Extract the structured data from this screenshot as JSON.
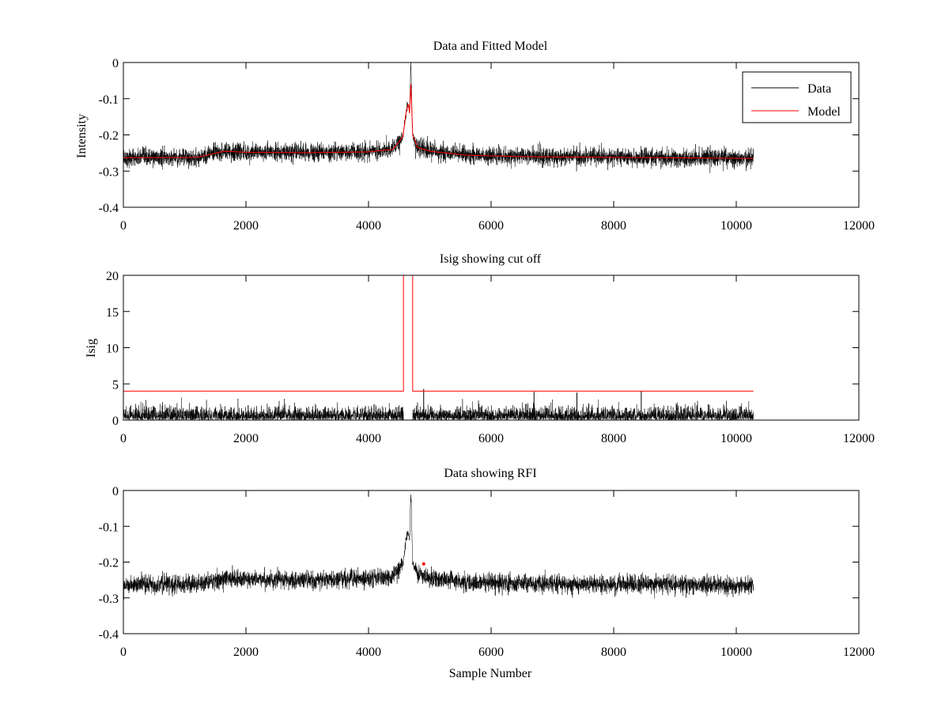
{
  "figure": {
    "xlabel": "Sample Number"
  },
  "colors": {
    "data": "#000000",
    "model": "#ff0000",
    "background": "#ffffff"
  },
  "chart_data": [
    {
      "type": "line",
      "title": "Data and Fitted Model",
      "xlabel": "",
      "ylabel": "Intensity",
      "xlim": [
        0,
        12000
      ],
      "ylim": [
        -0.4,
        0
      ],
      "xticks": [
        0,
        2000,
        4000,
        6000,
        8000,
        10000,
        12000
      ],
      "yticks": [
        -0.4,
        -0.3,
        -0.2,
        -0.1,
        0
      ],
      "ytick_labels": [
        "-0.4",
        "-0.3",
        "-0.2",
        "-0.1",
        "0"
      ],
      "legend": {
        "position": "top-right",
        "entries": [
          "Data",
          "Model"
        ]
      },
      "series": [
        {
          "name": "Data",
          "color": "#000000",
          "kind": "noisy",
          "x_range": [
            0,
            10280
          ],
          "noise": 0.012,
          "baseline_points": [
            [
              0,
              -0.263
            ],
            [
              1200,
              -0.262
            ],
            [
              1650,
              -0.245
            ],
            [
              2000,
              -0.248
            ],
            [
              3000,
              -0.249
            ],
            [
              4000,
              -0.247
            ],
            [
              4400,
              -0.24
            ],
            [
              4560,
              -0.205
            ],
            [
              4620,
              -0.13
            ],
            [
              4650,
              -0.115
            ],
            [
              4670,
              -0.14
            ],
            [
              4690,
              -0.002
            ],
            [
              4700,
              -0.06
            ],
            [
              4720,
              -0.2
            ],
            [
              4800,
              -0.235
            ],
            [
              5000,
              -0.245
            ],
            [
              5600,
              -0.256
            ],
            [
              6500,
              -0.26
            ],
            [
              8000,
              -0.262
            ],
            [
              10280,
              -0.265
            ]
          ]
        },
        {
          "name": "Model",
          "color": "#ff0000",
          "kind": "smooth",
          "points": [
            [
              0,
              -0.263
            ],
            [
              1200,
              -0.262
            ],
            [
              1650,
              -0.245
            ],
            [
              2000,
              -0.248
            ],
            [
              3000,
              -0.249
            ],
            [
              4000,
              -0.247
            ],
            [
              4400,
              -0.24
            ],
            [
              4560,
              -0.205
            ],
            [
              4620,
              -0.13
            ],
            [
              4650,
              -0.115
            ],
            [
              4670,
              -0.14
            ],
            [
              4690,
              -0.06
            ],
            [
              4700,
              -0.1
            ],
            [
              4720,
              -0.2
            ],
            [
              4800,
              -0.235
            ],
            [
              5000,
              -0.245
            ],
            [
              5600,
              -0.256
            ],
            [
              6500,
              -0.26
            ],
            [
              8000,
              -0.262
            ],
            [
              10280,
              -0.265
            ]
          ]
        }
      ]
    },
    {
      "type": "line",
      "title": "Isig showing cut off",
      "xlabel": "",
      "ylabel": "Isig",
      "xlim": [
        0,
        12000
      ],
      "ylim": [
        0,
        20
      ],
      "xticks": [
        0,
        2000,
        4000,
        6000,
        8000,
        10000,
        12000
      ],
      "yticks": [
        0,
        5,
        10,
        15,
        20
      ],
      "ytick_labels": [
        "0",
        "5",
        "10",
        "15",
        "20"
      ],
      "series": [
        {
          "name": "Isig",
          "color": "#000000",
          "kind": "abs-noise",
          "x_range": [
            0,
            10280
          ],
          "gap": [
            4570,
            4720
          ],
          "noise": 1.0,
          "spikes": [
            [
              4900,
              4.3
            ],
            [
              6700,
              3.9
            ],
            [
              7400,
              3.8
            ],
            [
              8450,
              4.0
            ]
          ]
        },
        {
          "name": "Cut off",
          "color": "#ff0000",
          "kind": "step",
          "points": [
            [
              0,
              4
            ],
            [
              4570,
              4
            ],
            [
              4570,
              20
            ],
            [
              4720,
              20
            ],
            [
              4720,
              4
            ],
            [
              10280,
              4
            ]
          ]
        }
      ]
    },
    {
      "type": "line",
      "title": "Data showing RFI",
      "xlabel": "Sample Number",
      "ylabel": "",
      "xlim": [
        0,
        12000
      ],
      "ylim": [
        -0.4,
        0
      ],
      "xticks": [
        0,
        2000,
        4000,
        6000,
        8000,
        10000,
        12000
      ],
      "yticks": [
        -0.4,
        -0.3,
        -0.2,
        -0.1,
        0
      ],
      "ytick_labels": [
        "-0.4",
        "-0.3",
        "-0.2",
        "-0.1",
        "0"
      ],
      "series": [
        {
          "name": "Data",
          "color": "#000000",
          "kind": "noisy",
          "x_range": [
            0,
            10280
          ],
          "noise": 0.012,
          "baseline_points": [
            [
              0,
              -0.263
            ],
            [
              1200,
              -0.262
            ],
            [
              1650,
              -0.245
            ],
            [
              2000,
              -0.248
            ],
            [
              3000,
              -0.249
            ],
            [
              4000,
              -0.247
            ],
            [
              4400,
              -0.24
            ],
            [
              4560,
              -0.205
            ],
            [
              4620,
              -0.13
            ],
            [
              4650,
              -0.115
            ],
            [
              4670,
              -0.14
            ],
            [
              4690,
              -0.002
            ],
            [
              4700,
              -0.06
            ],
            [
              4720,
              -0.2
            ],
            [
              4800,
              -0.235
            ],
            [
              5000,
              -0.245
            ],
            [
              5600,
              -0.256
            ],
            [
              6500,
              -0.26
            ],
            [
              8000,
              -0.262
            ],
            [
              10280,
              -0.265
            ]
          ]
        },
        {
          "name": "RFI",
          "color": "#ff0000",
          "kind": "markers",
          "points": [
            [
              4900,
              -0.205
            ]
          ]
        }
      ]
    }
  ]
}
